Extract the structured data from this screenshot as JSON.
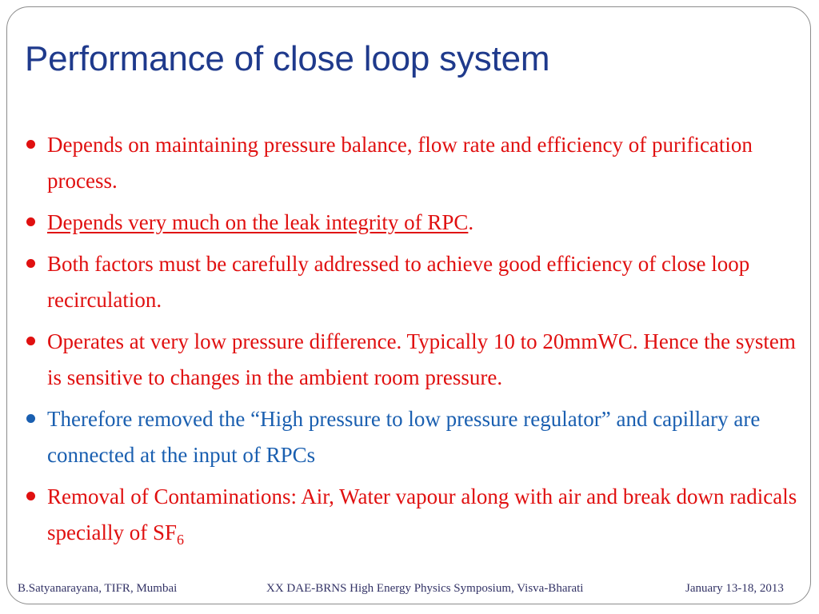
{
  "slide": {
    "title": "Performance of close loop system",
    "bullets": [
      {
        "text": "Depends on  maintaining pressure balance, flow rate  and efficiency of purification process.",
        "color": "#e01010"
      },
      {
        "text": "Depends very much on the leak integrity of RPC",
        "suffix": ".",
        "underline": true,
        "color": "#e01010"
      },
      {
        "text": "Both factors must be carefully addressed to achieve good efficiency of close loop recirculation.",
        "color": "#e01010"
      },
      {
        "text": "Operates at very low pressure difference. Typically 10 to 20mmWC. Hence the system is sensitive to changes in the ambient room pressure.",
        "color": "#e01010"
      },
      {
        "text": "Therefore removed the “High pressure to low pressure regulator” and capillary are connected at the input of RPCs",
        "color": "#1a5fb0"
      },
      {
        "text": "Removal of Contaminations: Air, Water vapour along with air and break down radicals specially of SF",
        "subscript": "6",
        "color": "#e01010"
      }
    ]
  },
  "footer": {
    "author": "B.Satyanarayana, TIFR, Mumbai",
    "event": "XX DAE-BRNS High Energy Physics Symposium, Visva-Bharati",
    "date": "January 13-18, 2013"
  }
}
